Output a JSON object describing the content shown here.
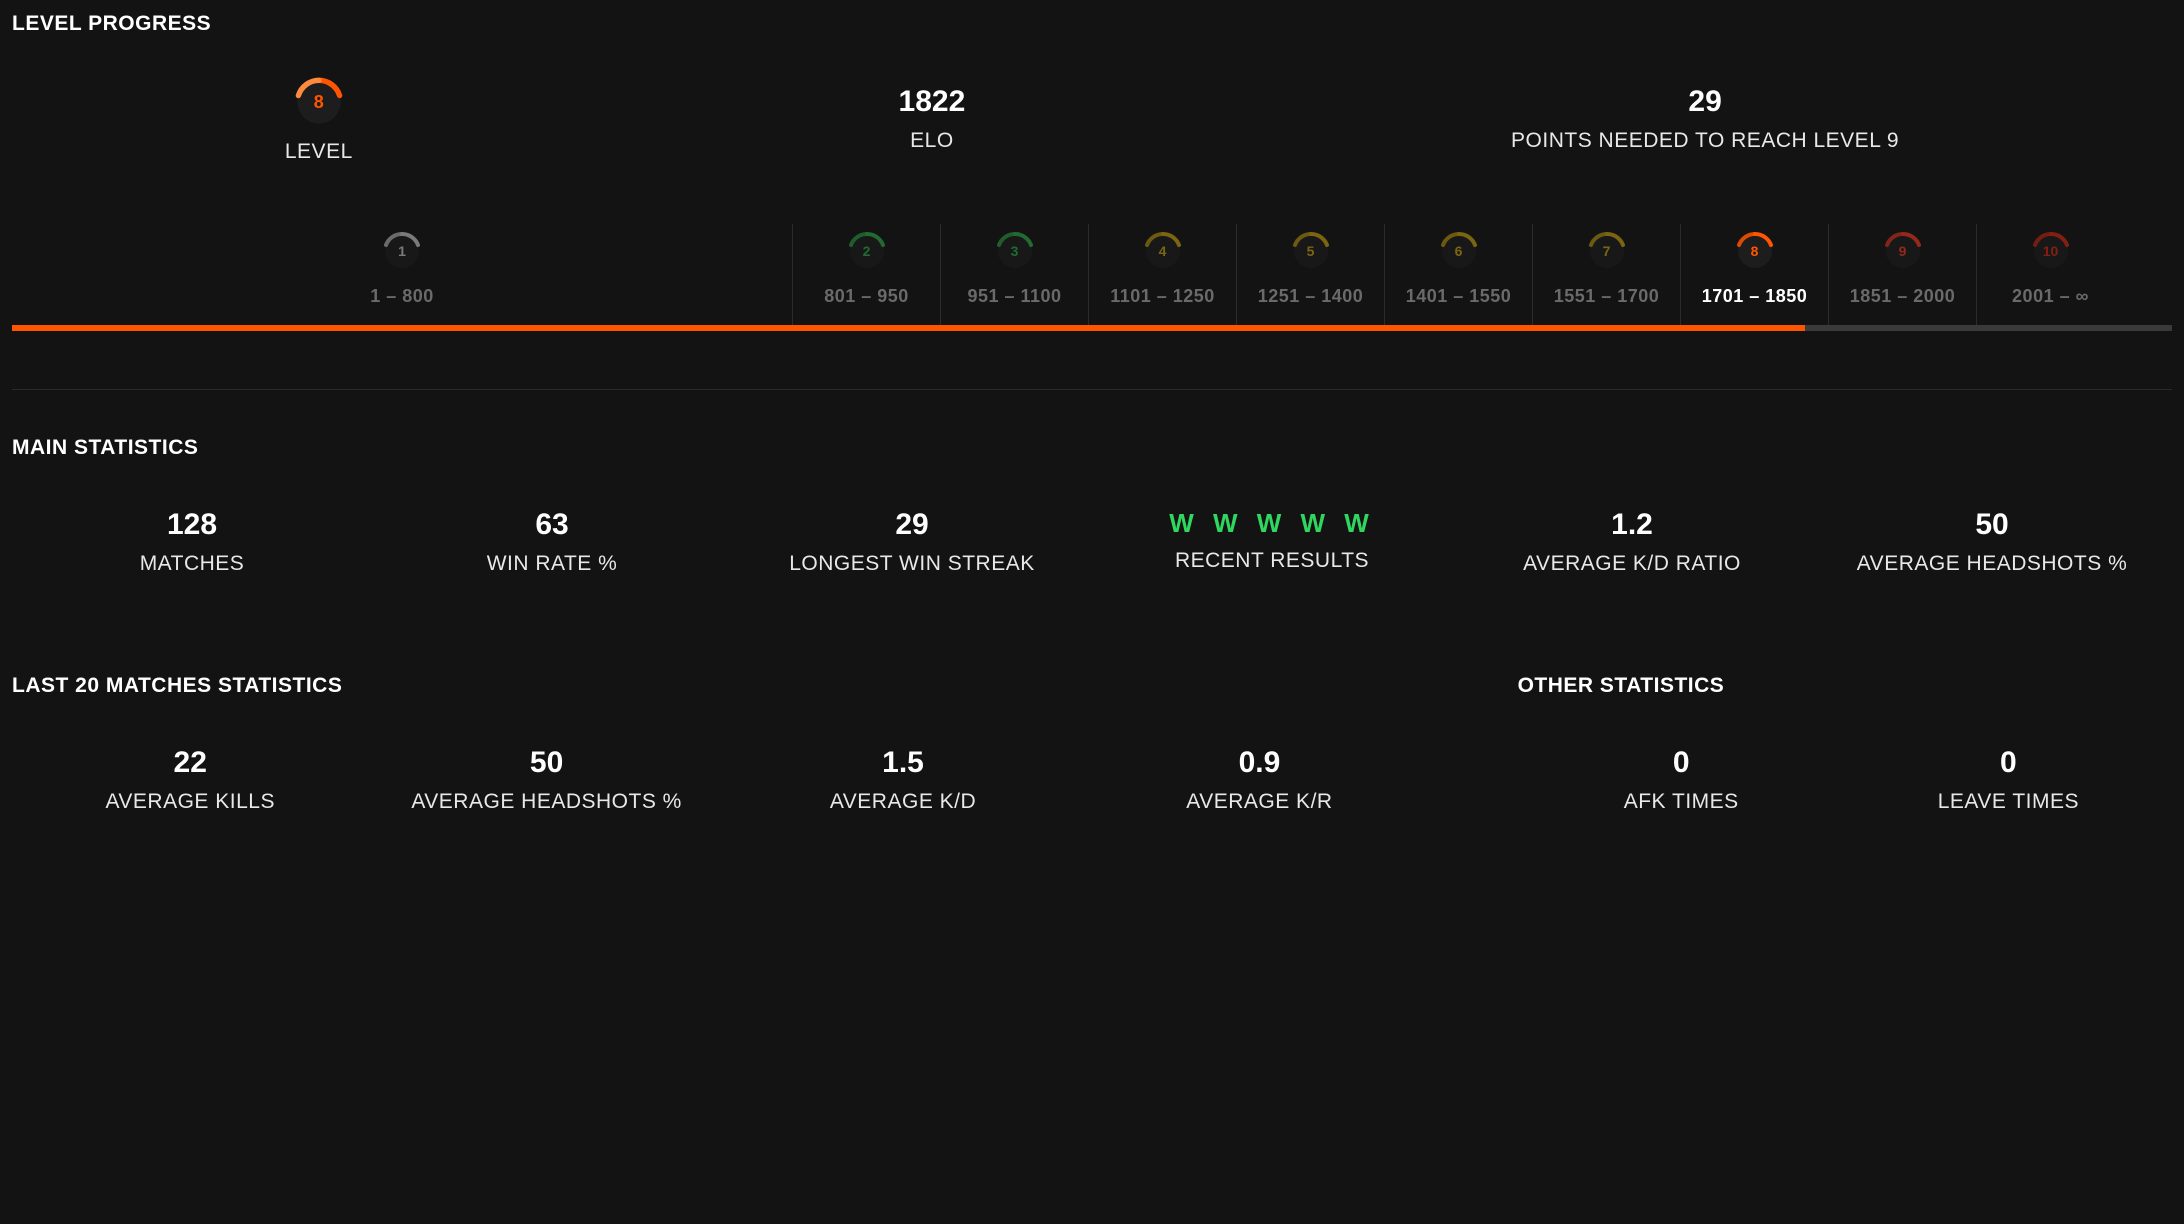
{
  "colors": {
    "bg": "#131313",
    "accent": "#ff5500",
    "trackEmpty": "#3a3a3a",
    "cellBorder": "#2b2b2b",
    "dimText": "#6a6a6a",
    "green": "#2fd65f"
  },
  "levelProgress": {
    "title": "LEVEL PROGRESS",
    "levelLabel": "LEVEL",
    "playerLevel": 8,
    "elo": {
      "value": "1822",
      "label": "ELO"
    },
    "pointsNeeded": {
      "value": "29",
      "label": "POINTS NEEDED TO REACH LEVEL 9"
    },
    "barFillPercent": 83,
    "tiers": [
      {
        "n": "1",
        "range": "1 – 800",
        "color": "#cfcfcf",
        "widthPx": 780,
        "state": "dim"
      },
      {
        "n": "2",
        "range": "801 – 950",
        "color": "#2fb24a",
        "widthPx": 148,
        "state": "dim"
      },
      {
        "n": "3",
        "range": "951 – 1100",
        "color": "#2fb24a",
        "widthPx": 148,
        "state": "dim"
      },
      {
        "n": "4",
        "range": "1101 – 1250",
        "color": "#d1a90e",
        "widthPx": 148,
        "state": "dim"
      },
      {
        "n": "5",
        "range": "1251 – 1400",
        "color": "#d1a90e",
        "widthPx": 148,
        "state": "dim"
      },
      {
        "n": "6",
        "range": "1401 – 1550",
        "color": "#d1a90e",
        "widthPx": 148,
        "state": "dim"
      },
      {
        "n": "7",
        "range": "1551 – 1700",
        "color": "#d1a90e",
        "widthPx": 148,
        "state": "dim"
      },
      {
        "n": "8",
        "range": "1701 – 1850",
        "color": "#ff5500",
        "widthPx": 148,
        "state": "active"
      },
      {
        "n": "9",
        "range": "1851 – 2000",
        "color": "#ff3b1f",
        "widthPx": 148,
        "state": "dim"
      },
      {
        "n": "10",
        "range": "2001 – ∞",
        "color": "#e02912",
        "widthPx": 148,
        "state": "dim"
      }
    ]
  },
  "mainStats": {
    "title": "MAIN STATISTICS",
    "items": [
      {
        "value": "128",
        "label": "MATCHES"
      },
      {
        "value": "63",
        "label": "WIN RATE %"
      },
      {
        "value": "29",
        "label": "LONGEST WIN STREAK"
      },
      {
        "value": "W W W W W",
        "label": "RECENT RESULTS",
        "green": true
      },
      {
        "value": "1.2",
        "label": "AVERAGE K/D RATIO"
      },
      {
        "value": "50",
        "label": "AVERAGE HEADSHOTS %"
      }
    ]
  },
  "last20": {
    "title": "LAST 20 MATCHES STATISTICS",
    "items": [
      {
        "value": "22",
        "label": "AVERAGE KILLS"
      },
      {
        "value": "50",
        "label": "AVERAGE HEADSHOTS %"
      },
      {
        "value": "1.5",
        "label": "AVERAGE K/D"
      },
      {
        "value": "0.9",
        "label": "AVERAGE K/R"
      }
    ]
  },
  "other": {
    "title": "OTHER STATISTICS",
    "items": [
      {
        "value": "0",
        "label": "AFK TIMES"
      },
      {
        "value": "0",
        "label": "LEAVE TIMES"
      }
    ]
  }
}
